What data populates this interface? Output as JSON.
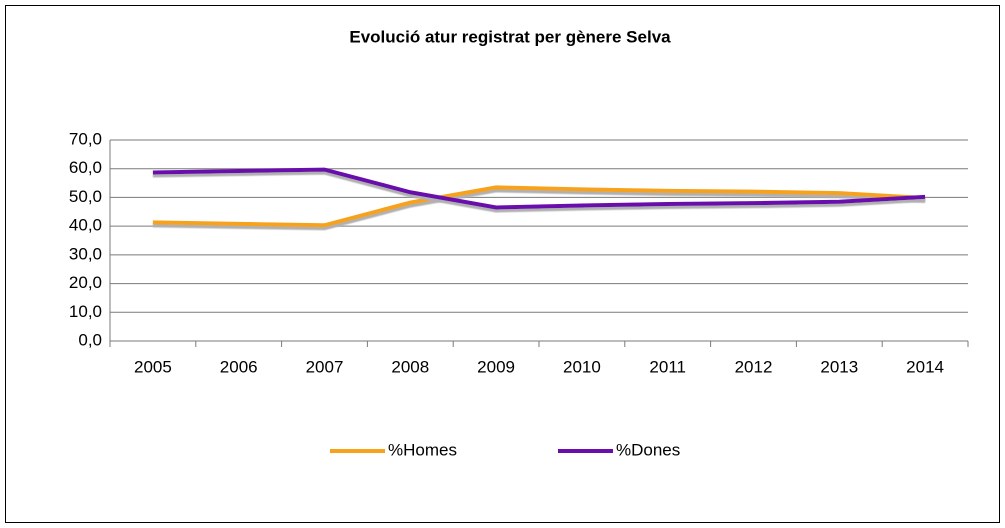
{
  "chart_data": {
    "type": "line",
    "title": "Evolució atur registrat per gènere Selva",
    "categories": [
      "2005",
      "2006",
      "2007",
      "2008",
      "2009",
      "2010",
      "2011",
      "2012",
      "2013",
      "2014"
    ],
    "series": [
      {
        "name": "%Homes",
        "color": "#f7a21b",
        "values": [
          41.3,
          40.8,
          40.3,
          48.2,
          53.5,
          52.8,
          52.3,
          52.0,
          51.5,
          49.8
        ]
      },
      {
        "name": "%Dones",
        "color": "#6a0dad",
        "values": [
          58.7,
          59.2,
          59.7,
          51.8,
          46.5,
          47.2,
          47.7,
          48.0,
          48.5,
          50.2
        ]
      }
    ],
    "ylim": [
      0,
      70
    ],
    "yticks": [
      {
        "value": 0,
        "label": "0,0"
      },
      {
        "value": 10,
        "label": "10,0"
      },
      {
        "value": 20,
        "label": "20,0"
      },
      {
        "value": 30,
        "label": "30,0"
      },
      {
        "value": 40,
        "label": "40,0"
      },
      {
        "value": 50,
        "label": "50,0"
      },
      {
        "value": 60,
        "label": "60,0"
      },
      {
        "value": 70,
        "label": "70,0"
      }
    ],
    "grid": true,
    "legend": "bottom"
  }
}
